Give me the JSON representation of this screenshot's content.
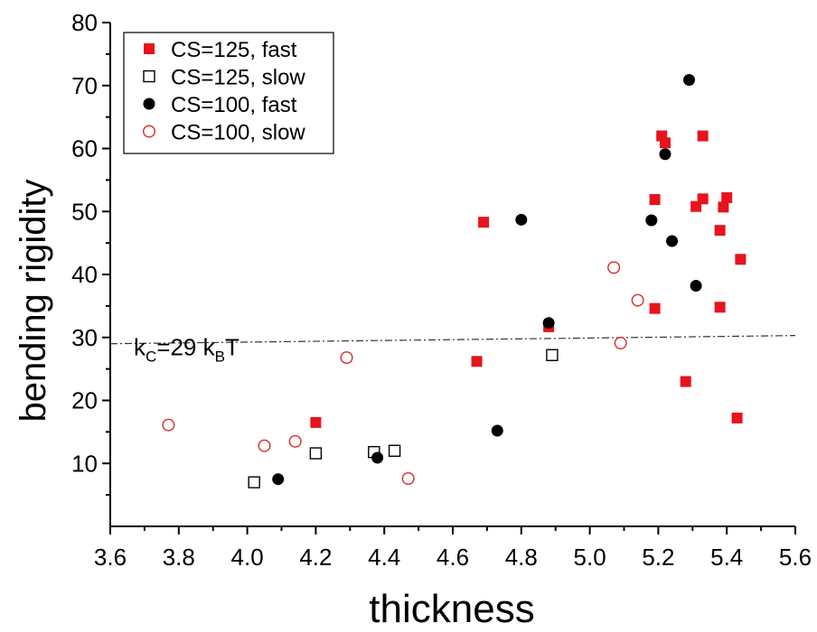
{
  "chart_data": {
    "type": "scatter",
    "xlabel": "thickness",
    "ylabel": "bending rigidity",
    "xlim": [
      3.6,
      5.6
    ],
    "ylim": [
      0,
      80
    ],
    "xticks": [
      "3.6",
      "3.8",
      "4.0",
      "4.2",
      "4.4",
      "4.6",
      "4.8",
      "5.0",
      "5.2",
      "5.4",
      "5.6"
    ],
    "yticks": [
      "10",
      "20",
      "30",
      "40",
      "50",
      "60",
      "70",
      "80"
    ],
    "grid": false,
    "legend_position": "top-left",
    "series": [
      {
        "name": "CS=125, fast",
        "marker": "square-filled",
        "color": "#e8131b",
        "points": [
          [
            4.2,
            16.5
          ],
          [
            4.67,
            26.2
          ],
          [
            4.69,
            48.3
          ],
          [
            4.88,
            31.7
          ],
          [
            5.19,
            34.6
          ],
          [
            5.19,
            51.9
          ],
          [
            5.21,
            62.0
          ],
          [
            5.22,
            60.9
          ],
          [
            5.28,
            23.0
          ],
          [
            5.31,
            50.8
          ],
          [
            5.33,
            52.0
          ],
          [
            5.33,
            62.0
          ],
          [
            5.38,
            47.0
          ],
          [
            5.38,
            34.8
          ],
          [
            5.39,
            50.7
          ],
          [
            5.4,
            52.2
          ],
          [
            5.43,
            17.2
          ],
          [
            5.44,
            42.4
          ]
        ]
      },
      {
        "name": "CS=125, slow",
        "marker": "square-open",
        "color": "#000000",
        "points": [
          [
            4.02,
            7.0
          ],
          [
            4.2,
            11.6
          ],
          [
            4.37,
            11.8
          ],
          [
            4.43,
            12.0
          ],
          [
            4.89,
            27.2
          ]
        ]
      },
      {
        "name": "CS=100, fast",
        "marker": "circle-filled",
        "color": "#000000",
        "points": [
          [
            4.09,
            7.5
          ],
          [
            4.38,
            10.9
          ],
          [
            4.73,
            15.2
          ],
          [
            4.8,
            48.7
          ],
          [
            4.88,
            32.3
          ],
          [
            5.18,
            48.6
          ],
          [
            5.22,
            59.1
          ],
          [
            5.24,
            45.3
          ],
          [
            5.29,
            70.9
          ],
          [
            5.31,
            38.2
          ]
        ]
      },
      {
        "name": "CS=100, slow",
        "marker": "circle-open",
        "color": "#d62b2b",
        "points": [
          [
            3.77,
            16.1
          ],
          [
            4.05,
            12.8
          ],
          [
            4.14,
            13.5
          ],
          [
            4.29,
            26.8
          ],
          [
            4.47,
            7.6
          ],
          [
            5.07,
            41.1
          ],
          [
            5.09,
            29.1
          ],
          [
            5.14,
            35.9
          ]
        ]
      }
    ],
    "reference_line": {
      "style": "dash-dot",
      "x": [
        3.6,
        5.6
      ],
      "y": [
        29.0,
        30.3
      ],
      "label_parts": {
        "main": "k",
        "main_sub": "C",
        "middle": "=29 k",
        "middle_sub": "B",
        "end": "T"
      }
    }
  }
}
